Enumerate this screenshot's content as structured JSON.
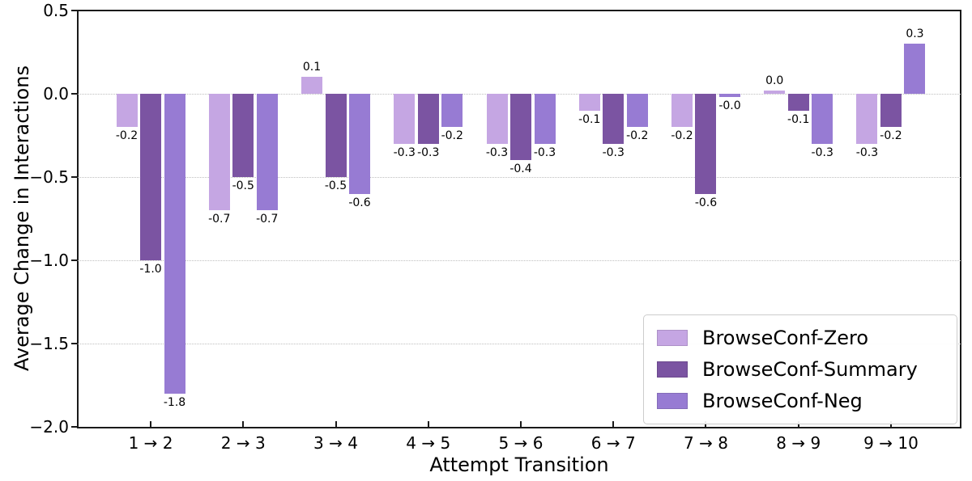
{
  "chart_data": {
    "type": "bar",
    "title": "",
    "xlabel": "Attempt Transition",
    "ylabel": "Average Change in Interactions",
    "categories": [
      "1 → 2",
      "2 → 3",
      "3 → 4",
      "4 → 5",
      "5 → 6",
      "6 → 7",
      "7 → 8",
      "8 → 9",
      "9 → 10"
    ],
    "series": [
      {
        "name": "BrowseConf-Zero",
        "color": "#c5a6e3",
        "values": [
          -0.2,
          -0.7,
          0.1,
          -0.3,
          -0.3,
          -0.1,
          -0.2,
          0.0,
          -0.3
        ],
        "labels": [
          "-0.2",
          "-0.7",
          "0.1",
          "-0.3",
          "-0.3",
          "-0.1",
          "-0.2",
          "0.0",
          "-0.3"
        ]
      },
      {
        "name": "BrowseConf-Summary",
        "color": "#7b54a2",
        "values": [
          -1.0,
          -0.5,
          -0.5,
          -0.3,
          -0.4,
          -0.3,
          -0.6,
          -0.1,
          -0.2
        ],
        "labels": [
          "-1.0",
          "-0.5",
          "-0.5",
          "-0.3",
          "-0.4",
          "-0.3",
          "-0.6",
          "-0.1",
          "-0.2"
        ]
      },
      {
        "name": "BrowseConf-Neg",
        "color": "#977bd3",
        "values": [
          -1.8,
          -0.7,
          -0.6,
          -0.2,
          -0.3,
          -0.2,
          -0.0,
          -0.3,
          0.3
        ],
        "labels": [
          "-1.8",
          "-0.7",
          "-0.6",
          "-0.2",
          "-0.3",
          "-0.2",
          "-0.0",
          "-0.3",
          "0.3"
        ]
      }
    ],
    "ylim": [
      -2.0,
      0.5
    ],
    "yticks": [
      {
        "label": "0.5",
        "value": 0.5
      },
      {
        "label": "0.0",
        "value": 0.0
      },
      {
        "label": "−0.5",
        "value": -0.5
      },
      {
        "label": "−1.0",
        "value": -1.0
      },
      {
        "label": "−1.5",
        "value": -1.5
      },
      {
        "label": "−2.0",
        "value": -2.0
      }
    ],
    "gridline_values": [
      0.0,
      -0.5,
      -1.0,
      -1.5
    ],
    "grid": "horizontal-dotted",
    "legend": {
      "position": "lower-right",
      "entries": [
        "BrowseConf-Zero",
        "BrowseConf-Summary",
        "BrowseConf-Neg"
      ]
    }
  }
}
